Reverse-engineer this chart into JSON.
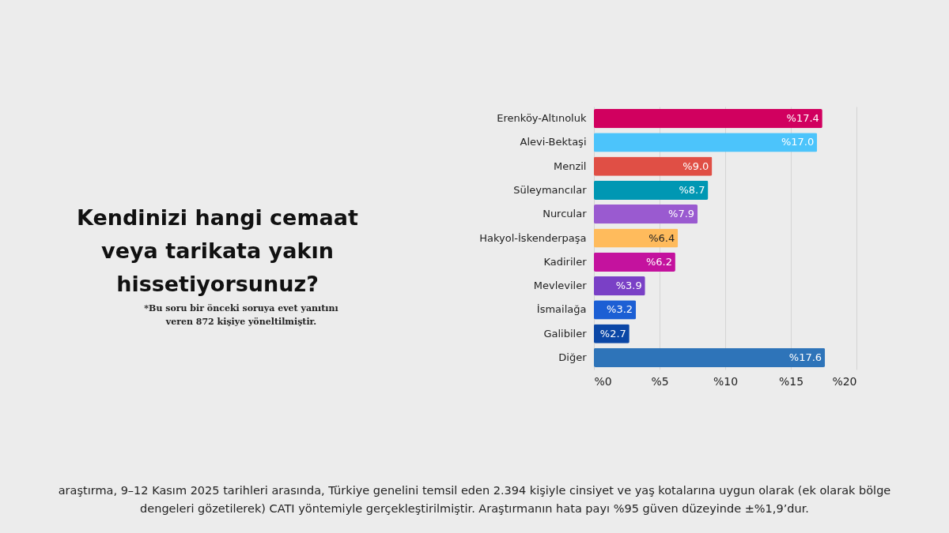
{
  "chart_data": {
    "type": "bar",
    "orientation": "horizontal",
    "title": "Kendinizi hangi cemaat veya tarikata yakın hissetiyorsunuz?",
    "subtitle": "*Bu soru bir önceki soruya evet yanıtını veren 872 kişiye yöneltilmiştir.",
    "categories": [
      "Erenköy-Altınoluk",
      "Alevi-Bektaşi",
      "Menzil",
      "Süleymancılar",
      "Nurcular",
      "Hakyol-İskenderpaşa",
      "Kadiriler",
      "Mevleviler",
      "İsmailağa",
      "Galibiler",
      "Diğer"
    ],
    "values": [
      17.4,
      17.0,
      9.0,
      8.7,
      7.9,
      6.4,
      6.2,
      3.9,
      3.2,
      2.7,
      17.6
    ],
    "value_labels": [
      "%17.4",
      "%17.0",
      "%9.0",
      "%8.7",
      "%7.9",
      "%6.4",
      "%6.2",
      "%3.9",
      "%3.2",
      "%2.7",
      "%17.6"
    ],
    "colors": [
      "#d1005f",
      "#4cc4fb",
      "#e04f45",
      "#0097b3",
      "#9a5ad0",
      "#ffbb5c",
      "#c4129e",
      "#7a40c6",
      "#1c5fd4",
      "#0b47a6",
      "#2e74b9"
    ],
    "xlim": [
      0,
      20
    ],
    "xticks": [
      {
        "value": 0,
        "label": "%0"
      },
      {
        "value": 5,
        "label": "%5"
      },
      {
        "value": 10,
        "label": "%10"
      },
      {
        "value": 15,
        "label": "%15"
      },
      {
        "value": 20,
        "label": "%20"
      }
    ],
    "grid": "x",
    "annotations": [
      "araştırma, 9–12 Kasım 2025 tarihleri arasında, Türkiye genelini temsil eden 2.394 kişiyle cinsiyet ve yaş kotalarına uygun olarak (ek olarak bölge dengeleri gözetilerek) CATI yöntemiyle gerçekleştirilmiştir. Araştırmanın hata payı %95 güven düzeyinde ±%1,9’dur."
    ]
  }
}
